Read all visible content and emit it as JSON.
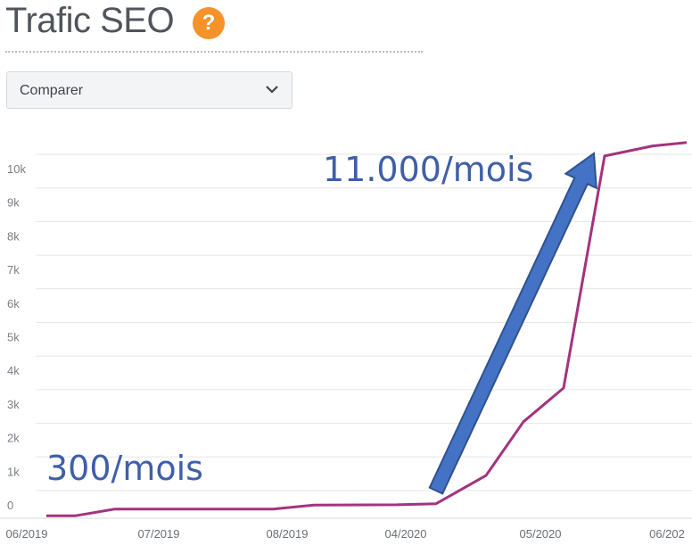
{
  "header": {
    "title": "Trafic SEO",
    "help_label": "?"
  },
  "compare": {
    "selected": "Comparer",
    "icon": "chevron-down-icon"
  },
  "colors": {
    "line": "#a3337f",
    "arrow_fill": "#4472c4",
    "arrow_stroke": "#2f528f",
    "annotation": "#3f5fa8",
    "help_badge": "#f5922a"
  },
  "chart_data": {
    "type": "line",
    "title": "",
    "xlabel": "",
    "ylabel": "",
    "ylim": [
      0,
      10500
    ],
    "y_ticks": [
      "0",
      "1k",
      "2k",
      "3k",
      "4k",
      "5k",
      "6k",
      "7k",
      "8k",
      "9k",
      "10k"
    ],
    "x_ticks": [
      "06/2019",
      "07/2019",
      "08/2019",
      "04/2020",
      "05/2020",
      "06/202"
    ],
    "grid": true,
    "series": [
      {
        "x": [
          "06/2019",
          "06/2019",
          "07/2019",
          "08/2019",
          "08/2019",
          "04/2020",
          "04/2020",
          "05/2020",
          "05/2020",
          "05/2020",
          "06/2020",
          "06/2020",
          "06/2020"
        ],
        "values": [
          -300,
          -300,
          -100,
          -100,
          20,
          30,
          60,
          900,
          2500,
          3500,
          10400,
          10700,
          10800
        ]
      }
    ],
    "annotations": [
      {
        "text": "300/mois"
      },
      {
        "text": "11.000/mois"
      }
    ]
  }
}
